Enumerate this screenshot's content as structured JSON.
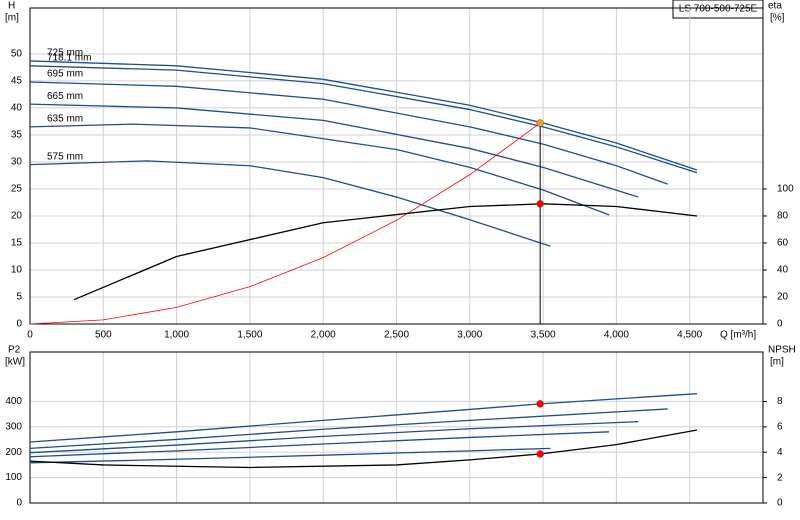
{
  "title": "LS 700-500-725E",
  "chart_data": [
    {
      "type": "line",
      "ylabel": "H",
      "yunit": "[m]",
      "y2label": "eta",
      "y2unit": "[%]",
      "xlabel": "Q [m³/h]",
      "xlim": [
        0,
        5000
      ],
      "xticks": [
        0,
        500,
        {
          "value": 1000,
          "label": "1,000"
        },
        {
          "value": 1500,
          "label": "1,500"
        },
        {
          "value": 2000,
          "label": "2,000"
        },
        {
          "value": 2500,
          "label": "2,500"
        },
        {
          "value": 3000,
          "label": "3,000"
        },
        {
          "value": 3500,
          "label": "3,500"
        },
        {
          "value": 4000,
          "label": "4,000"
        },
        {
          "value": 4500,
          "label": "4,500"
        }
      ],
      "show_xtick_labels": true,
      "ylim": [
        0,
        58.5
      ],
      "yticks": [
        0,
        5,
        10,
        15,
        20,
        25,
        30,
        35,
        40,
        45,
        50
      ],
      "y2lim": [
        0,
        234
      ],
      "y2ticks": [
        0,
        20,
        40,
        60,
        80,
        100
      ],
      "grid": true,
      "series": [
        {
          "name": "725 mm",
          "color": "#1f4e8c",
          "x": [
            0,
            1000,
            2000,
            3000,
            3500,
            4000,
            4550
          ],
          "values": [
            48.7,
            47.8,
            45.3,
            40.5,
            37.2,
            33.5,
            28.5
          ]
        },
        {
          "name": "718.1 mm",
          "color": "#1f4e8c",
          "x": [
            0,
            1000,
            2000,
            3000,
            3500,
            4000,
            4550
          ],
          "values": [
            47.8,
            47.0,
            44.5,
            39.7,
            36.5,
            32.8,
            28.0
          ]
        },
        {
          "name": "695 mm",
          "color": "#1f4e8c",
          "x": [
            0,
            1000,
            2000,
            3000,
            3500,
            4000,
            4350
          ],
          "values": [
            44.8,
            44.0,
            41.6,
            36.5,
            33.3,
            29.3,
            25.9
          ]
        },
        {
          "name": "665 mm",
          "color": "#1f4e8c",
          "x": [
            0,
            1000,
            2000,
            3000,
            3500,
            4150
          ],
          "values": [
            40.7,
            40.0,
            37.7,
            32.5,
            29.0,
            23.5
          ]
        },
        {
          "name": "635 mm",
          "color": "#1f4e8c",
          "x": [
            0,
            700,
            1500,
            2500,
            3000,
            3500,
            3950
          ],
          "values": [
            36.5,
            37.0,
            36.3,
            32.3,
            29.0,
            24.8,
            20.2
          ]
        },
        {
          "name": "575 mm",
          "color": "#1f4e8c",
          "x": [
            0,
            800,
            1500,
            2000,
            2500,
            3000,
            3550
          ],
          "values": [
            29.5,
            30.2,
            29.3,
            27.1,
            23.5,
            19.3,
            14.4
          ]
        },
        {
          "color": "#ff0000",
          "x": [
            0,
            500,
            1000,
            1500,
            2000,
            2500,
            3000,
            3480
          ],
          "values": [
            0,
            0.77,
            3.07,
            6.91,
            12.29,
            19.2,
            27.65,
            37.2
          ]
        },
        {
          "color": "#000000",
          "axis": "y2",
          "x": [
            300,
            1000,
            2000,
            3000,
            3500,
            4000,
            4550
          ],
          "values": [
            18,
            50,
            75,
            87,
            89,
            87,
            80
          ]
        }
      ],
      "points": [
        {
          "x": 3480,
          "y": 37.2,
          "color": "#f0a020"
        },
        {
          "x": 3480,
          "y": 89,
          "axis": "y2",
          "color": "#ff0000"
        }
      ]
    },
    {
      "type": "line",
      "ylabel": "P2",
      "yunit": "[kW]",
      "y2label": "NPSH",
      "y2unit": "[m]",
      "xlim": [
        0,
        5000
      ],
      "xticks": [
        0,
        500,
        1000,
        1500,
        2000,
        2500,
        3000,
        3500,
        4000,
        4500
      ],
      "show_xtick_labels": false,
      "ylim": [
        0,
        594
      ],
      "yticks": [
        0,
        100,
        200,
        300,
        400
      ],
      "y2lim": [
        0,
        11.9
      ],
      "y2ticks": [
        0,
        2,
        4,
        6,
        8
      ],
      "grid": true,
      "series": [
        {
          "color": "#1f4e8c",
          "x": [
            0,
            1000,
            2000,
            3000,
            3480,
            4550
          ],
          "values": [
            240,
            280,
            325,
            368,
            390,
            430
          ]
        },
        {
          "color": "#1f4e8c",
          "x": [
            0,
            1000,
            2000,
            3000,
            4350
          ],
          "values": [
            215,
            250,
            290,
            325,
            370
          ]
        },
        {
          "color": "#1f4e8c",
          "x": [
            0,
            1000,
            2000,
            3000,
            4150
          ],
          "values": [
            198,
            228,
            262,
            292,
            320
          ]
        },
        {
          "color": "#1f4e8c",
          "x": [
            0,
            1000,
            2000,
            3000,
            3950
          ],
          "values": [
            182,
            205,
            232,
            258,
            280
          ]
        },
        {
          "color": "#1f4e8c",
          "x": [
            0,
            1000,
            2000,
            3000,
            3550
          ],
          "values": [
            158,
            172,
            188,
            205,
            215
          ]
        },
        {
          "color": "#000000",
          "axis": "y2",
          "x": [
            0,
            500,
            1500,
            2500,
            3000,
            3480,
            4000,
            4550
          ],
          "values": [
            3.3,
            3.0,
            2.8,
            3.0,
            3.4,
            3.86,
            4.6,
            5.75
          ]
        }
      ],
      "points": [
        {
          "x": 3480,
          "y": 390,
          "color": "#ff0000"
        },
        {
          "x": 3480,
          "y": 3.86,
          "axis": "y2",
          "color": "#ff0000"
        }
      ]
    }
  ]
}
